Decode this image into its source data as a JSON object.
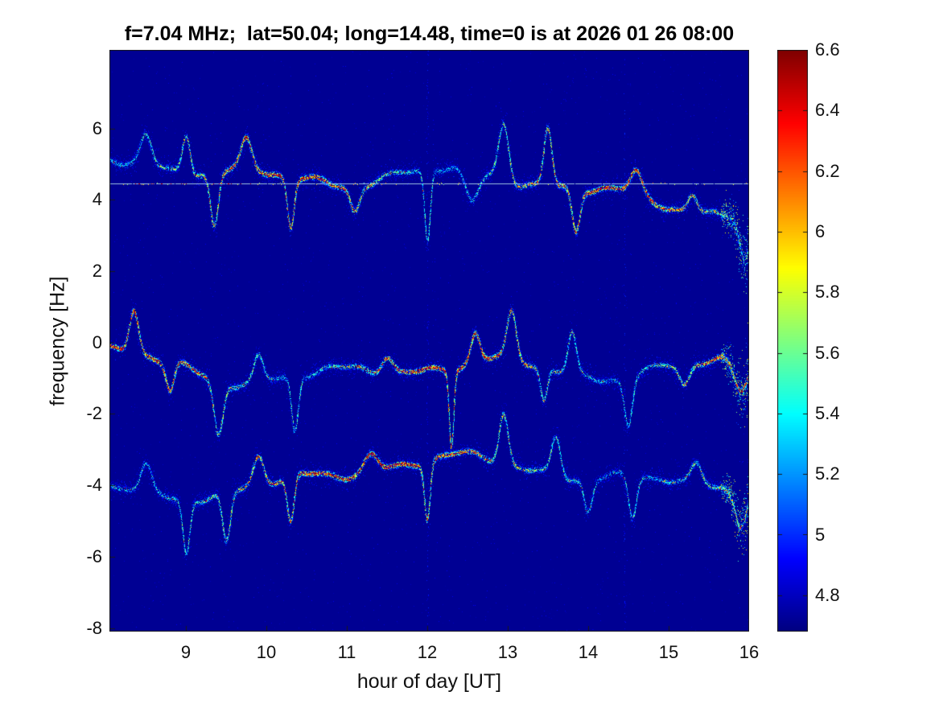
{
  "chart_data": {
    "type": "heatmap",
    "title": "f=7.04 MHz;  lat=50.04; long=14.48, time=0 is at 2026 01 26 08:00",
    "xlabel": "hour of day [UT]",
    "ylabel": "frequency [Hz]",
    "xlim": [
      8.05,
      16
    ],
    "ylim": [
      -8.1,
      8.2
    ],
    "xticks": [
      9,
      10,
      11,
      12,
      13,
      14,
      15,
      16
    ],
    "yticks": [
      6,
      4,
      2,
      0,
      -2,
      -4,
      -6,
      -8
    ],
    "grid": false,
    "colormap": "jet",
    "background_value": 4.7,
    "background_color": "#000094",
    "colorbar": {
      "position": "right",
      "min": 4.68,
      "max": 6.6,
      "ticks": [
        6.6,
        6.4,
        6.2,
        6,
        5.8,
        5.6,
        5.4,
        5.2,
        5,
        4.8
      ]
    },
    "carrier_line_hz": 4.45,
    "artifact_columns_hours": [
      12.0,
      14.45
    ],
    "traces": [
      {
        "name": "upper-doppler-trace",
        "center_hz": 4.45,
        "wander_hz": 0.55,
        "strength": 0.75,
        "min_hz": 2.4,
        "max_hz": 6.1,
        "events": [
          {
            "h": 8.5,
            "d": 0.9,
            "w": 0.1
          },
          {
            "h": 9.0,
            "d": 1.1,
            "w": 0.07
          },
          {
            "h": 9.35,
            "d": -1.5,
            "w": 0.07
          },
          {
            "h": 9.75,
            "d": 0.8,
            "w": 0.09
          },
          {
            "h": 10.3,
            "d": -1.4,
            "w": 0.06
          },
          {
            "h": 11.1,
            "d": -0.7,
            "w": 0.08
          },
          {
            "h": 12.0,
            "d": -2.0,
            "w": 0.05
          },
          {
            "h": 12.55,
            "d": -0.9,
            "w": 0.12
          },
          {
            "h": 12.95,
            "d": 1.6,
            "w": 0.09
          },
          {
            "h": 13.5,
            "d": 1.6,
            "w": 0.07
          },
          {
            "h": 13.85,
            "d": -1.2,
            "w": 0.07
          },
          {
            "h": 14.6,
            "d": 0.6,
            "w": 0.1
          },
          {
            "h": 15.3,
            "d": 0.5,
            "w": 0.08
          },
          {
            "h": 15.95,
            "d": -1.3,
            "w": 0.09
          }
        ]
      },
      {
        "name": "middle-doppler-trace",
        "center_hz": -0.45,
        "wander_hz": 0.55,
        "strength": 1.0,
        "min_hz": -2.6,
        "max_hz": 0.9,
        "events": [
          {
            "h": 8.35,
            "d": 1.2,
            "w": 0.08
          },
          {
            "h": 8.8,
            "d": -0.8,
            "w": 0.07
          },
          {
            "h": 9.4,
            "d": -1.5,
            "w": 0.08
          },
          {
            "h": 9.9,
            "d": 0.7,
            "w": 0.08
          },
          {
            "h": 10.35,
            "d": -1.5,
            "w": 0.06
          },
          {
            "h": 11.5,
            "d": 0.5,
            "w": 0.1
          },
          {
            "h": 12.3,
            "d": -2.1,
            "w": 0.04
          },
          {
            "h": 12.6,
            "d": 0.8,
            "w": 0.08
          },
          {
            "h": 13.05,
            "d": 1.3,
            "w": 0.08
          },
          {
            "h": 13.45,
            "d": -0.9,
            "w": 0.06
          },
          {
            "h": 13.8,
            "d": 1.1,
            "w": 0.07
          },
          {
            "h": 14.5,
            "d": -1.3,
            "w": 0.07
          },
          {
            "h": 15.2,
            "d": -0.6,
            "w": 0.09
          },
          {
            "h": 15.9,
            "d": -0.9,
            "w": 0.12
          }
        ]
      },
      {
        "name": "lower-doppler-trace",
        "center_hz": -3.95,
        "wander_hz": 0.5,
        "strength": 0.8,
        "min_hz": -5.7,
        "max_hz": -2.5,
        "events": [
          {
            "h": 8.5,
            "d": 0.7,
            "w": 0.09
          },
          {
            "h": 9.0,
            "d": -1.5,
            "w": 0.06
          },
          {
            "h": 9.5,
            "d": -1.4,
            "w": 0.07
          },
          {
            "h": 9.9,
            "d": 0.8,
            "w": 0.09
          },
          {
            "h": 10.3,
            "d": -1.3,
            "w": 0.06
          },
          {
            "h": 11.3,
            "d": 0.5,
            "w": 0.12
          },
          {
            "h": 12.0,
            "d": -1.6,
            "w": 0.05
          },
          {
            "h": 12.95,
            "d": 1.4,
            "w": 0.08
          },
          {
            "h": 13.6,
            "d": 1.1,
            "w": 0.08
          },
          {
            "h": 14.0,
            "d": -0.9,
            "w": 0.07
          },
          {
            "h": 14.55,
            "d": -1.2,
            "w": 0.07
          },
          {
            "h": 15.35,
            "d": 0.5,
            "w": 0.09
          },
          {
            "h": 15.9,
            "d": -1.0,
            "w": 0.1
          }
        ]
      }
    ]
  }
}
